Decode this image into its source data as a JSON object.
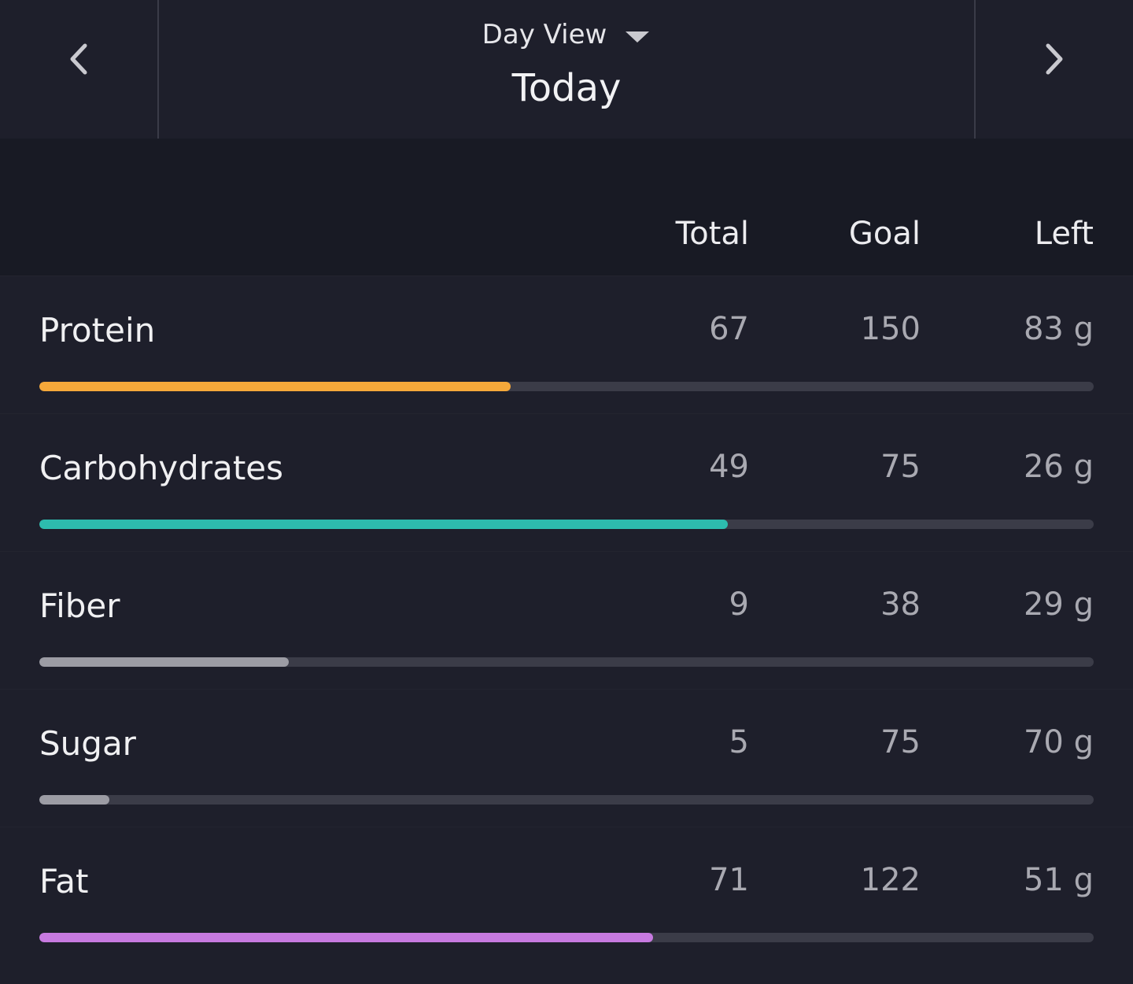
{
  "header": {
    "view": "Day View",
    "date": "Today"
  },
  "table": {
    "columns": [
      "Total",
      "Goal",
      "Left"
    ],
    "rows": [
      {
        "name": "Protein",
        "total": 67,
        "goal": 150,
        "left": "83 g",
        "color": "#f5a83a"
      },
      {
        "name": "Carbohydrates",
        "total": 49,
        "goal": 75,
        "left": "26 g",
        "color": "#2dbcae"
      },
      {
        "name": "Fiber",
        "total": 9,
        "goal": 38,
        "left": "29 g",
        "color": "#9c9ca4"
      },
      {
        "name": "Sugar",
        "total": 5,
        "goal": 75,
        "left": "70 g",
        "color": "#9c9ca4"
      },
      {
        "name": "Fat",
        "total": 71,
        "goal": 122,
        "left": "51 g",
        "color": "#c77ae0"
      }
    ]
  }
}
